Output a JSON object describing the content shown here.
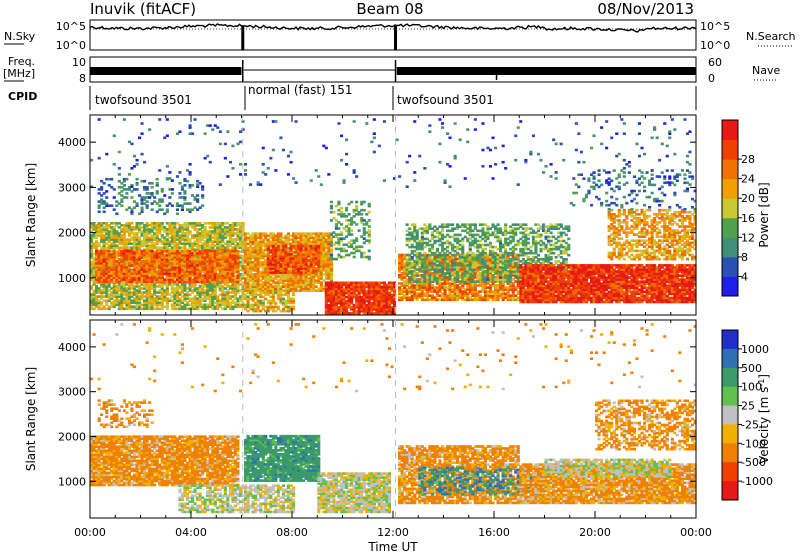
{
  "header": {
    "station": "Inuvik (fitACF)",
    "beam": "Beam 08",
    "date": "08/Nov/2013"
  },
  "status_panels": {
    "nsky_label": "N.Sky",
    "nsky_ticks": [
      "10^5",
      "10^0"
    ],
    "nsearch_label": "N.Search",
    "nsearch_ticks": [
      "10^5",
      "10^0"
    ],
    "freq_label_top": "Freq.",
    "freq_label_unit": "[MHz]",
    "freq_ticks": [
      "10",
      "8"
    ],
    "nave_label": "Nave",
    "nave_ticks": [
      "60",
      "0"
    ],
    "cpid_label": "CPID",
    "modes": [
      {
        "name": "twofsound 3501",
        "start_hour": 0,
        "end_hour": 6.05
      },
      {
        "name": "normal (fast) 151",
        "start_hour": 6.05,
        "end_hour": 12.1
      },
      {
        "name": "twofsound 3501",
        "start_hour": 12.1,
        "end_hour": 24
      }
    ]
  },
  "colorbars": {
    "power": {
      "label": "Power [dB]",
      "ticks": [
        "4",
        "8",
        "12",
        "16",
        "20",
        "24",
        "28"
      ],
      "colors": [
        "#1f1fe6",
        "#2a4fb5",
        "#3f8f7a",
        "#50a050",
        "#c8c832",
        "#f0a000",
        "#f07000",
        "#f04000",
        "#e61919"
      ]
    },
    "velocity": {
      "label_main": "Velocity",
      "label_unit": "[m s",
      "label_exp": "-1",
      "label_close": "]",
      "ticks": [
        "1000",
        "500",
        "100",
        "25",
        "-25",
        "-100",
        "-500",
        "-1000"
      ],
      "colors": [
        "#1f2fc8",
        "#2f6fb5",
        "#3a9a6a",
        "#60c050",
        "#c0c0c0",
        "#f0b000",
        "#f08000",
        "#f04000",
        "#e61919"
      ]
    }
  },
  "chart_data": [
    {
      "type": "heatmap",
      "title": "Power",
      "ylabel": "Slant Range [km]",
      "xlabel": "Time UT",
      "x_ticks": [
        "00:00",
        "04:00",
        "08:00",
        "12:00",
        "16:00",
        "20:00",
        "00:00"
      ],
      "xlim_hours": [
        0,
        24
      ],
      "y_ticks": [
        1000,
        2000,
        3000,
        4000
      ],
      "ylim_km": [
        180,
        4600
      ],
      "mode_change_hours": [
        6.05,
        12.1
      ],
      "regions": [
        {
          "t0": 0.0,
          "t1": 6.0,
          "r0": 300,
          "r1": 2200,
          "density": 0.8,
          "level": 16
        },
        {
          "t0": 0.2,
          "t1": 5.8,
          "r0": 900,
          "r1": 1600,
          "density": 0.9,
          "level": 24
        },
        {
          "t0": 0.3,
          "t1": 4.5,
          "r0": 2400,
          "r1": 3200,
          "density": 0.25,
          "level": 8
        },
        {
          "t0": 6.1,
          "t1": 9.5,
          "r0": 700,
          "r1": 2000,
          "density": 0.9,
          "level": 20
        },
        {
          "t0": 7.0,
          "t1": 9.0,
          "r0": 1100,
          "r1": 1700,
          "density": 0.8,
          "level": 26
        },
        {
          "t0": 6.1,
          "t1": 8.0,
          "r0": 250,
          "r1": 700,
          "density": 0.7,
          "level": 18
        },
        {
          "t0": 9.3,
          "t1": 12.0,
          "r0": 200,
          "r1": 900,
          "density": 0.95,
          "level": 28
        },
        {
          "t0": 9.5,
          "t1": 11.0,
          "r0": 1400,
          "r1": 2700,
          "density": 0.35,
          "level": 12
        },
        {
          "t0": 12.2,
          "t1": 17.0,
          "r0": 500,
          "r1": 1500,
          "density": 0.85,
          "level": 22
        },
        {
          "t0": 12.5,
          "t1": 19.0,
          "r0": 900,
          "r1": 2200,
          "density": 0.5,
          "level": 12
        },
        {
          "t0": 17.0,
          "t1": 24.0,
          "r0": 450,
          "r1": 1300,
          "density": 0.95,
          "level": 28
        },
        {
          "t0": 20.5,
          "t1": 24.0,
          "r0": 1400,
          "r1": 2500,
          "density": 0.6,
          "level": 20
        },
        {
          "t0": 19.0,
          "t1": 24.0,
          "r0": 2500,
          "r1": 3400,
          "density": 0.15,
          "level": 8
        },
        {
          "t0": 0.0,
          "t1": 24.0,
          "r0": 3000,
          "r1": 4500,
          "density": 0.03,
          "level": 6
        }
      ]
    },
    {
      "type": "heatmap",
      "title": "Velocity",
      "ylabel": "Slant Range [km]",
      "xlabel": "Time UT",
      "x_ticks": [
        "00:00",
        "04:00",
        "08:00",
        "12:00",
        "16:00",
        "20:00",
        "00:00"
      ],
      "xlim_hours": [
        0,
        24
      ],
      "y_ticks": [
        1000,
        2000,
        3000,
        4000
      ],
      "ylim_km": [
        180,
        4600
      ],
      "mode_change_hours": [
        6.05,
        12.1
      ],
      "regions": [
        {
          "t0": 0.0,
          "t1": 5.8,
          "r0": 900,
          "r1": 2000,
          "density": 0.9,
          "level": -150
        },
        {
          "t0": 0.3,
          "t1": 2.5,
          "r0": 2200,
          "r1": 2800,
          "density": 0.35,
          "level": -200
        },
        {
          "t0": 3.5,
          "t1": 6.0,
          "r0": 300,
          "r1": 900,
          "density": 0.6,
          "level": 0
        },
        {
          "t0": 6.1,
          "t1": 9.0,
          "r0": 1000,
          "r1": 2000,
          "density": 0.9,
          "level": 300
        },
        {
          "t0": 6.1,
          "t1": 8.0,
          "r0": 300,
          "r1": 900,
          "density": 0.7,
          "level": 0
        },
        {
          "t0": 9.0,
          "t1": 11.8,
          "r0": 300,
          "r1": 1200,
          "density": 0.9,
          "level": 0
        },
        {
          "t0": 12.2,
          "t1": 17.0,
          "r0": 500,
          "r1": 1800,
          "density": 0.8,
          "level": -150
        },
        {
          "t0": 13.0,
          "t1": 18.0,
          "r0": 700,
          "r1": 1300,
          "density": 0.4,
          "level": 400
        },
        {
          "t0": 17.0,
          "t1": 24.0,
          "r0": 500,
          "r1": 1400,
          "density": 0.9,
          "level": -120
        },
        {
          "t0": 18.0,
          "t1": 23.0,
          "r0": 1100,
          "r1": 1500,
          "density": 0.7,
          "level": 0
        },
        {
          "t0": 20.0,
          "t1": 24.0,
          "r0": 1700,
          "r1": 2800,
          "density": 0.55,
          "level": -150
        },
        {
          "t0": 0.0,
          "t1": 24.0,
          "r0": 3000,
          "r1": 4500,
          "density": 0.02,
          "level": -150
        }
      ]
    }
  ]
}
